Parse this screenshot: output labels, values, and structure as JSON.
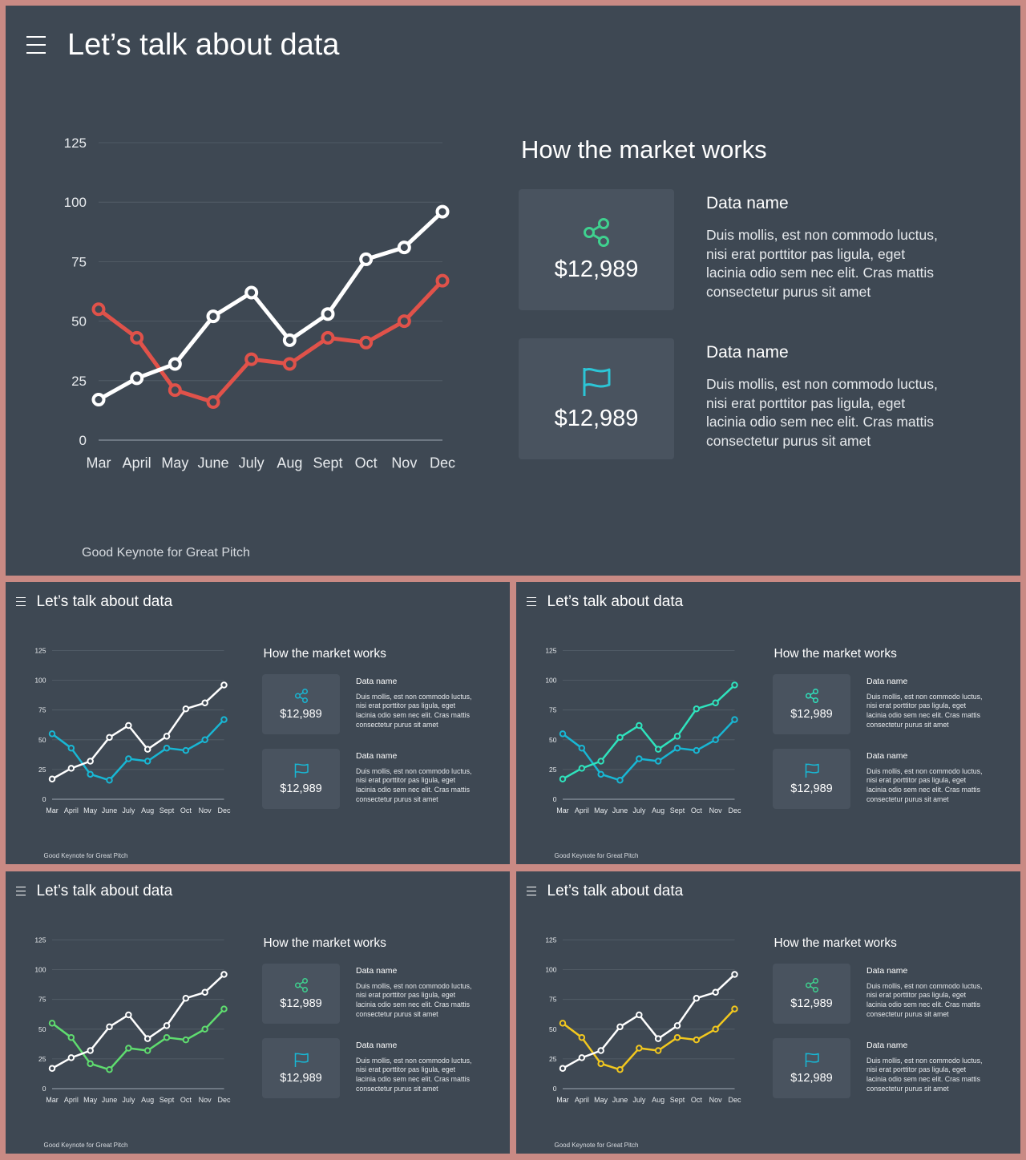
{
  "colors": {
    "background": "#3e4853",
    "frame": "#c98a84",
    "card": "#49535f",
    "series_primary": "#ffffff"
  },
  "slides": [
    {
      "variant": "large",
      "title": "Let’s talk about data",
      "heading": "How the market works",
      "footer": "Good Keynote for Great Pitch",
      "accent": "#e0524a",
      "icon_colors": {
        "share": "#3fd18f",
        "flag": "#2cc5d6"
      },
      "cards": [
        {
          "icon": "share-icon",
          "value": "$12,989",
          "name": "Data name",
          "desc": "Duis mollis, est non commodo luctus, nisi erat porttitor pas ligula, eget lacinia odio sem nec elit. Cras mattis consectetur purus sit amet"
        },
        {
          "icon": "flag-icon",
          "value": "$12,989",
          "name": "Data name",
          "desc": "Duis mollis, est non commodo luctus, nisi erat porttitor pas ligula, eget lacinia odio sem nec elit. Cras mattis consectetur purus sit amet"
        }
      ]
    },
    {
      "variant": "small",
      "title": "Let’s talk about data",
      "heading": "How the market works",
      "footer": "Good Keynote for Great Pitch",
      "accent": "#18b7d4",
      "icon_colors": {
        "share": "#18b7d4",
        "flag": "#18b7d4"
      },
      "cards": [
        {
          "icon": "share-icon",
          "value": "$12,989",
          "name": "Data name",
          "desc": "Duis mollis, est non commodo luctus, nisi erat porttitor pas ligula, eget lacinia odio sem nec elit. Cras mattis consectetur purus sit amet"
        },
        {
          "icon": "flag-icon",
          "value": "$12,989",
          "name": "Data name",
          "desc": "Duis mollis, est non commodo luctus, nisi erat porttitor pas ligula, eget lacinia odio sem nec elit. Cras mattis consectetur purus sit amet"
        }
      ]
    },
    {
      "variant": "small",
      "title": "Let’s talk about data",
      "heading": "How the market works",
      "footer": "Good Keynote for Great Pitch",
      "accent": "#18b7d4",
      "series_main": "#2fe3bd",
      "icon_colors": {
        "share": "#2fe3bd",
        "flag": "#18b7d4"
      },
      "cards": [
        {
          "icon": "share-icon",
          "value": "$12,989",
          "name": "Data name",
          "desc": "Duis mollis, est non commodo luctus, nisi erat porttitor pas ligula, eget lacinia odio sem nec elit. Cras mattis consectetur purus sit amet"
        },
        {
          "icon": "flag-icon",
          "value": "$12,989",
          "name": "Data name",
          "desc": "Duis mollis, est non commodo luctus, nisi erat porttitor pas ligula, eget lacinia odio sem nec elit. Cras mattis consectetur purus sit amet"
        }
      ]
    },
    {
      "variant": "small",
      "title": "Let’s talk about data",
      "heading": "How the market works",
      "footer": "Good Keynote for Great Pitch",
      "accent": "#5fdc6f",
      "icon_colors": {
        "share": "#3fd18f",
        "flag": "#18b7d4"
      },
      "cards": [
        {
          "icon": "share-icon",
          "value": "$12,989",
          "name": "Data name",
          "desc": "Duis mollis, est non commodo luctus, nisi erat porttitor pas ligula, eget lacinia odio sem nec elit. Cras mattis consectetur purus sit amet"
        },
        {
          "icon": "flag-icon",
          "value": "$12,989",
          "name": "Data name",
          "desc": "Duis mollis, est non commodo luctus, nisi erat porttitor pas ligula, eget lacinia odio sem nec elit. Cras mattis consectetur purus sit amet"
        }
      ]
    },
    {
      "variant": "small",
      "title": "Let’s talk about data",
      "heading": "How the market works",
      "footer": "Good Keynote for Great Pitch",
      "accent": "#f2c81e",
      "icon_colors": {
        "share": "#3fd18f",
        "flag": "#18b7d4"
      },
      "cards": [
        {
          "icon": "share-icon",
          "value": "$12,989",
          "name": "Data name",
          "desc": "Duis mollis, est non commodo luctus, nisi erat porttitor pas ligula, eget lacinia odio sem nec elit. Cras mattis consectetur purus sit amet"
        },
        {
          "icon": "flag-icon",
          "value": "$12,989",
          "name": "Data name",
          "desc": "Duis mollis, est non commodo luctus, nisi erat porttitor pas ligula, eget lacinia odio sem nec elit. Cras mattis consectetur purus sit amet"
        }
      ]
    }
  ],
  "chart_data": {
    "type": "line",
    "categories": [
      "Mar",
      "April",
      "May",
      "June",
      "July",
      "Aug",
      "Sept",
      "Oct",
      "Nov",
      "Dec"
    ],
    "series": [
      {
        "values": [
          17,
          26,
          32,
          52,
          62,
          42,
          53,
          76,
          81,
          96
        ]
      },
      {
        "values": [
          55,
          43,
          21,
          16,
          34,
          32,
          43,
          41,
          50,
          67
        ]
      }
    ],
    "yticks": [
      0,
      25,
      50,
      75,
      100,
      125
    ],
    "ylim": [
      0,
      125
    ],
    "grid": true
  }
}
